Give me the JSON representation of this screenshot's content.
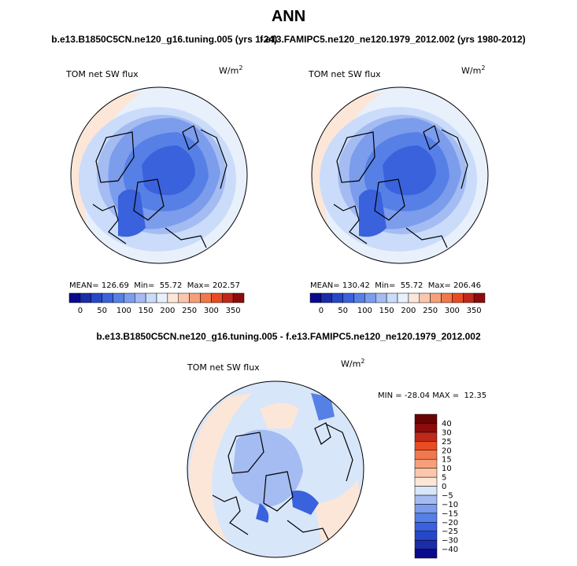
{
  "title": "ANN",
  "top_case_left": "b.e13.B1850C5CN.ne120_g16.tuning.005 (yrs 1-24)",
  "top_case_right": "f.e13.FAMIPC5.ne120_ne120.1979_2012.002 (yrs 1980-2012)",
  "diff_title": "b.e13.B1850C5CN.ne120_g16.tuning.005 - f.e13.FAMIPC5.ne120_ne120.1979_2012.002",
  "chart_data": [
    {
      "type": "heatmap",
      "projection": "polar-stereographic-north",
      "panel": "test",
      "variable": "TOM net SW flux",
      "units": "W/m",
      "units_exp": "2",
      "stats": {
        "mean_label": "MEAN=",
        "mean": "126.69",
        "min_label": "Min=",
        "min": "55.72",
        "max_label": "Max=",
        "max": "202.57"
      },
      "colorbar": {
        "orientation": "horizontal",
        "levels": [
          0,
          25,
          50,
          75,
          100,
          125,
          150,
          175,
          200,
          225,
          250,
          275,
          300,
          325,
          350
        ],
        "tick_labels": [
          "0",
          "50",
          "100",
          "150",
          "200",
          "250",
          "300",
          "350"
        ],
        "colors": [
          "#0a0a8c",
          "#1a2ca8",
          "#2648c8",
          "#3a62dc",
          "#5680e6",
          "#7c9cec",
          "#a4bcf2",
          "#cadcfa",
          "#e8f0fc",
          "#fce6d8",
          "#fac6ac",
          "#f6a07a",
          "#f0784c",
          "#e84c22",
          "#c0281a",
          "#8c0c0c"
        ]
      }
    },
    {
      "type": "heatmap",
      "projection": "polar-stereographic-north",
      "panel": "control",
      "variable": "TOM net SW flux",
      "units": "W/m",
      "units_exp": "2",
      "stats": {
        "mean_label": "MEAN=",
        "mean": "130.42",
        "min_label": "Min=",
        "min": "55.72",
        "max_label": "Max=",
        "max": "206.46"
      },
      "colorbar": {
        "orientation": "horizontal",
        "levels": [
          0,
          25,
          50,
          75,
          100,
          125,
          150,
          175,
          200,
          225,
          250,
          275,
          300,
          325,
          350
        ],
        "tick_labels": [
          "0",
          "50",
          "100",
          "150",
          "200",
          "250",
          "300",
          "350"
        ],
        "colors": [
          "#0a0a8c",
          "#1a2ca8",
          "#2648c8",
          "#3a62dc",
          "#5680e6",
          "#7c9cec",
          "#a4bcf2",
          "#cadcfa",
          "#e8f0fc",
          "#fce6d8",
          "#fac6ac",
          "#f6a07a",
          "#f0784c",
          "#e84c22",
          "#c0281a",
          "#8c0c0c"
        ]
      }
    },
    {
      "type": "heatmap",
      "projection": "polar-stereographic-north",
      "panel": "difference",
      "variable": "TOM net SW flux",
      "units": "W/m",
      "units_exp": "2",
      "stats": {
        "min_label": "MIN =",
        "min": "-28.04",
        "max_label": "MAX =",
        "max": "12.35"
      },
      "colorbar": {
        "orientation": "vertical",
        "levels": [
          -40,
          -30,
          -25,
          -20,
          -15,
          -10,
          -5,
          0,
          5,
          10,
          15,
          20,
          25,
          30,
          40
        ],
        "tick_labels": [
          "−40",
          "−30",
          "−25",
          "−20",
          "−15",
          "−10",
          "−5",
          "0",
          "5",
          "10",
          "15",
          "20",
          "25",
          "30",
          "40"
        ],
        "colors": [
          "#0a0a8c",
          "#1a2ca8",
          "#2648c8",
          "#3a62dc",
          "#5680e6",
          "#7c9cec",
          "#a4bcf2",
          "#d8e6fa",
          "#fce6d8",
          "#fac6ac",
          "#f6a07a",
          "#f0784c",
          "#e84c22",
          "#c0281a",
          "#8c0c0c",
          "#6a0404"
        ]
      }
    }
  ]
}
